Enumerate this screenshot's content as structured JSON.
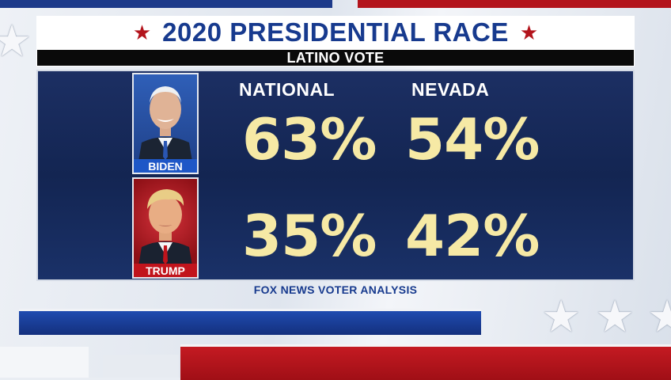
{
  "title": "2020 PRESIDENTIAL RACE",
  "subtitle": "LATINO VOTE",
  "columns": {
    "national": "NATIONAL",
    "nevada": "NEVADA"
  },
  "candidates": [
    {
      "name": "BIDEN",
      "national": "63%",
      "nevada": "54%",
      "plate_color": "#1e57c7"
    },
    {
      "name": "TRUMP",
      "national": "35%",
      "nevada": "42%",
      "plate_color": "#c1141c"
    }
  ],
  "source": "FOX NEWS VOTER ANALYSIS",
  "colors": {
    "title_blue": "#173a8e",
    "accent_red": "#b3141c",
    "figure_yellow": "#f6e9a5",
    "panel_navy": "#132552"
  },
  "icons": {
    "title_star": "star-icon"
  }
}
